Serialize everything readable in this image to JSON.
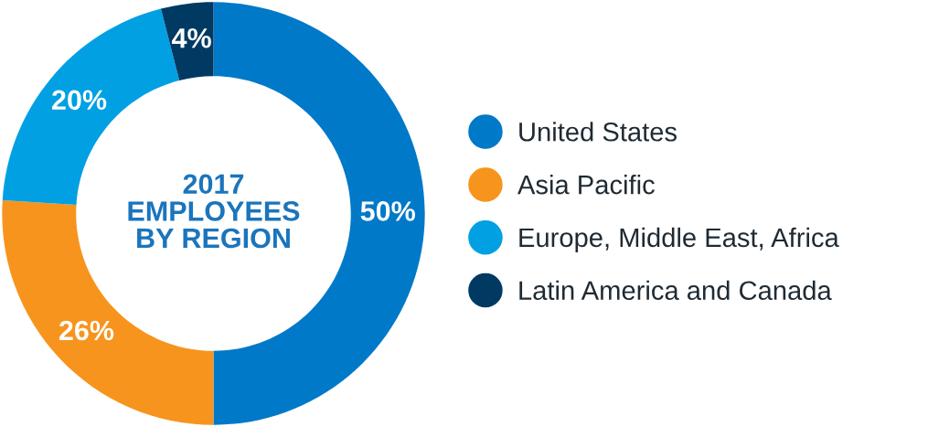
{
  "chart_data": {
    "type": "donut",
    "title": "2017\nEMPLOYEES\nBY REGION",
    "categories": [
      "United States",
      "Asia Pacific",
      "Europe, Middle East, Africa",
      "Latin America and Canada"
    ],
    "values": [
      50,
      26,
      20,
      4
    ],
    "colors": [
      "#0079c8",
      "#f7941d",
      "#00a0e3",
      "#003a63"
    ],
    "value_labels": [
      "50%",
      "26%",
      "20%",
      "4%"
    ],
    "legend": "right"
  }
}
